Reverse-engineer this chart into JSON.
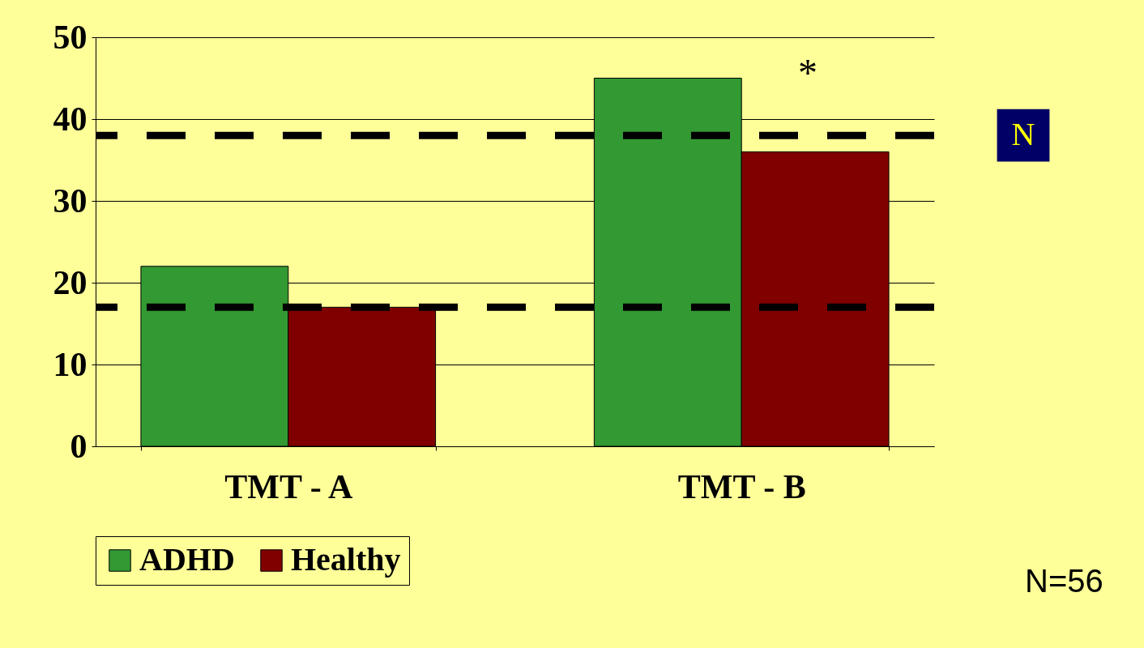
{
  "chart_data": {
    "type": "bar",
    "categories": [
      "TMT - A",
      "TMT - B"
    ],
    "series": [
      {
        "name": "ADHD",
        "color": "#339933",
        "values": [
          22,
          45
        ]
      },
      {
        "name": "Healthy",
        "color": "#800000",
        "values": [
          17,
          36
        ]
      }
    ],
    "ref_lines": [
      {
        "axis": "y",
        "value": 17,
        "color": "#000000",
        "line_style": "dashed"
      },
      {
        "axis": "y",
        "value": 38,
        "label": "N",
        "color": "#000000",
        "line_style": "dashed"
      }
    ],
    "ylim": [
      0,
      50
    ],
    "yticks": [
      0,
      10,
      20,
      30,
      40,
      50
    ],
    "grid": "y",
    "legend": "bottom",
    "annotations": [
      "*",
      "N=56"
    ]
  }
}
